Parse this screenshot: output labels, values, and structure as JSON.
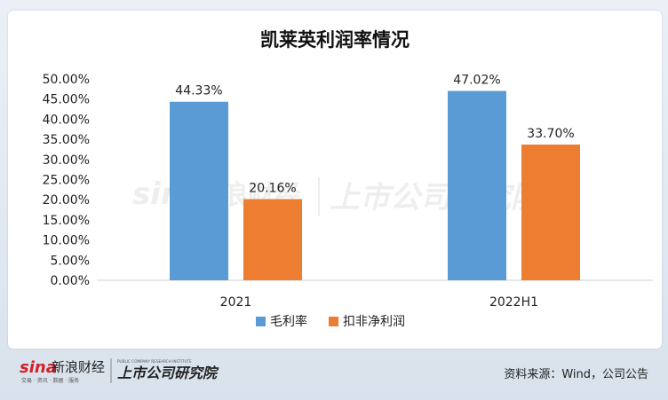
{
  "brand": {
    "sina_logo": "sina",
    "sina_name": "新浪财经",
    "sina_tagline": "交易 · 资讯 · 数据 · 服务",
    "institute_name": "上市公司研究院",
    "institute_en": "PUBLIC COMPANY RESEARCH INSTITUTE"
  },
  "footer": {
    "source": "资料来源：Wind，公司公告"
  },
  "colors": {
    "series_1": "#5b9bd5",
    "series_2": "#ed7d31"
  },
  "chart_data": {
    "type": "bar",
    "title": "凯莱英利润率情况",
    "categories": [
      "2021",
      "2022H1"
    ],
    "series": [
      {
        "name": "毛利率",
        "values": [
          44.33,
          47.02
        ],
        "labels": [
          "44.33%",
          "47.02%"
        ]
      },
      {
        "name": "扣非净利润",
        "values": [
          20.16,
          33.7
        ],
        "labels": [
          "20.16%",
          "33.70%"
        ]
      }
    ],
    "ylim": [
      0,
      50
    ],
    "yticks": [
      "0.00%",
      "5.00%",
      "10.00%",
      "15.00%",
      "20.00%",
      "25.00%",
      "30.00%",
      "35.00%",
      "40.00%",
      "45.00%",
      "50.00%"
    ],
    "legend_position": "bottom",
    "grid": false
  }
}
